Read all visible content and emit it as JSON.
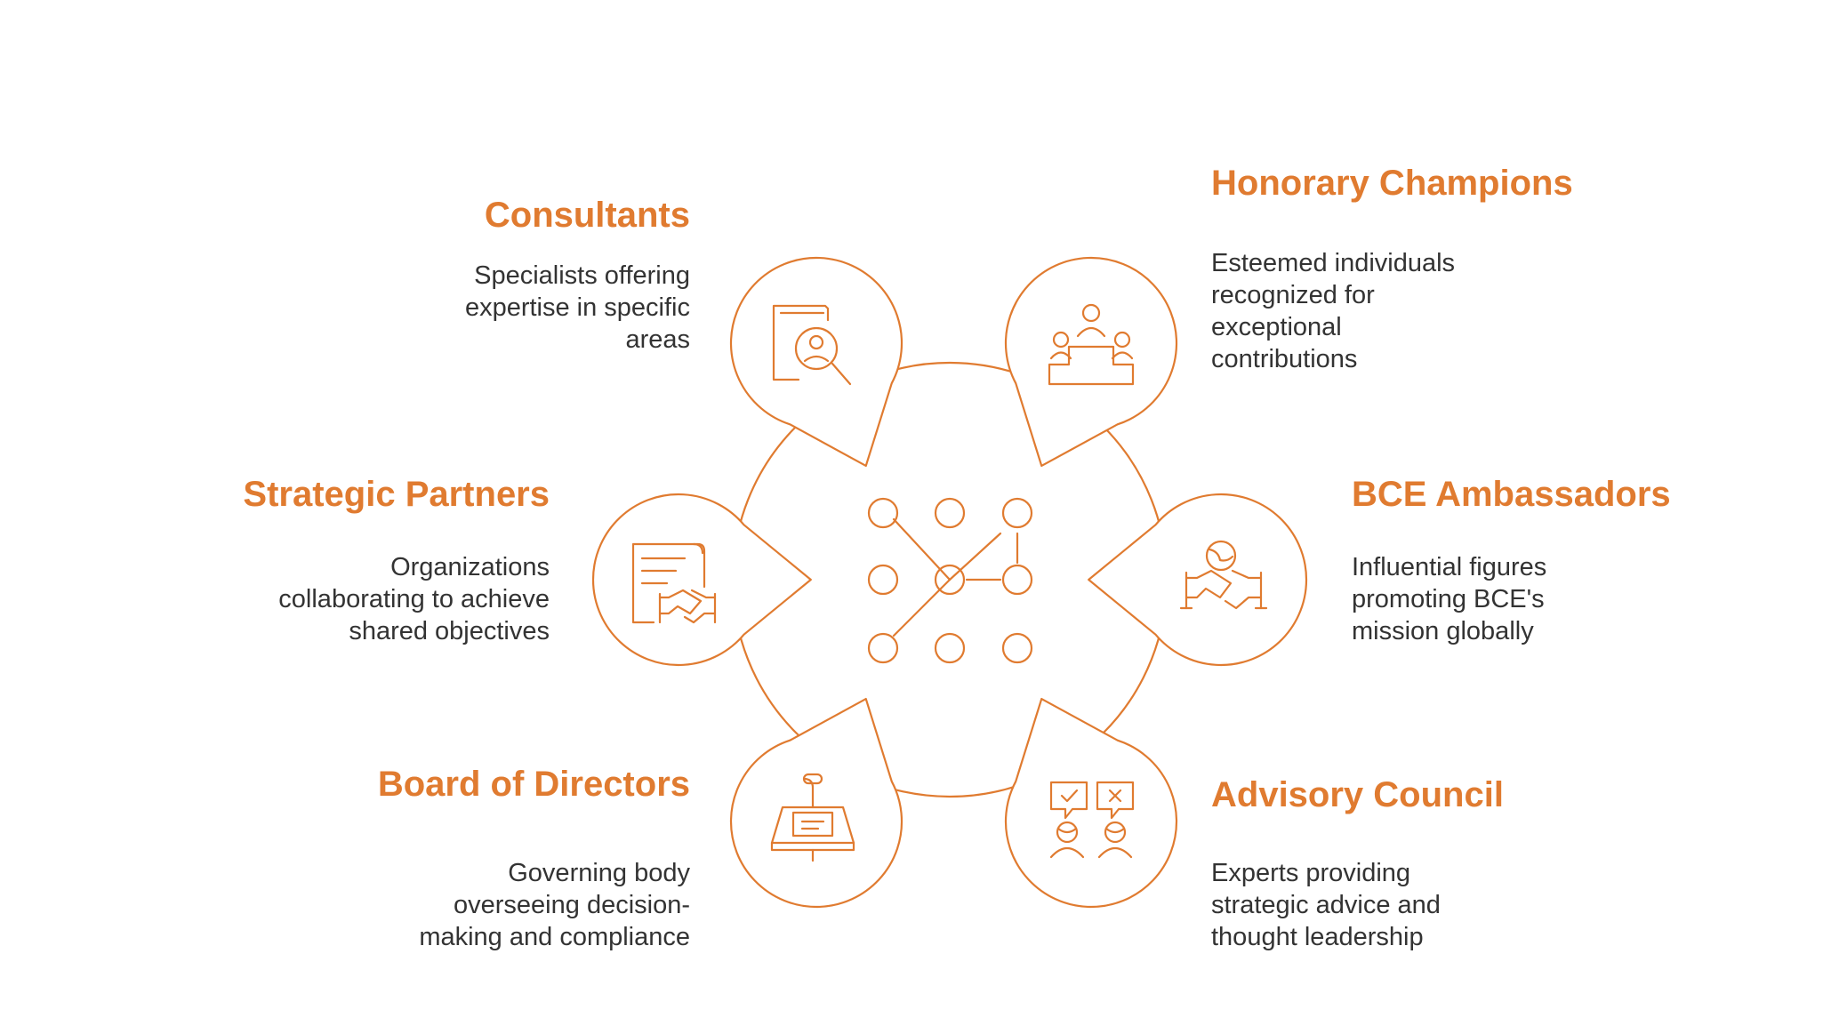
{
  "colors": {
    "accent": "#E07B30",
    "text": "#333333",
    "background": "#ffffff"
  },
  "center": {
    "icon": "network-nodes-icon"
  },
  "items": [
    {
      "key": "consultants",
      "icon": "document-search-icon",
      "title": "Consultants",
      "desc": [
        "Specialists offering",
        "expertise in specific",
        "areas"
      ]
    },
    {
      "key": "honorary",
      "icon": "podium-icon",
      "title": "Honorary Champions",
      "desc": [
        "Esteemed individuals",
        "recognized for",
        "exceptional",
        "contributions"
      ]
    },
    {
      "key": "partners",
      "icon": "agreement-handshake-icon",
      "title": "Strategic Partners",
      "desc": [
        "Organizations",
        "collaborating to achieve",
        "shared objectives"
      ]
    },
    {
      "key": "ambassadors",
      "icon": "globe-handshake-icon",
      "title": "BCE Ambassadors",
      "desc": [
        "Influential figures",
        "promoting BCE's",
        "mission globally"
      ]
    },
    {
      "key": "board",
      "icon": "lectern-icon",
      "title": "Board of Directors",
      "desc": [
        "Governing body",
        "overseeing decision-",
        "making and compliance"
      ]
    },
    {
      "key": "advisory",
      "icon": "people-feedback-icon",
      "title": "Advisory Council",
      "desc": [
        "Experts providing",
        "strategic advice and",
        "thought leadership"
      ]
    }
  ]
}
